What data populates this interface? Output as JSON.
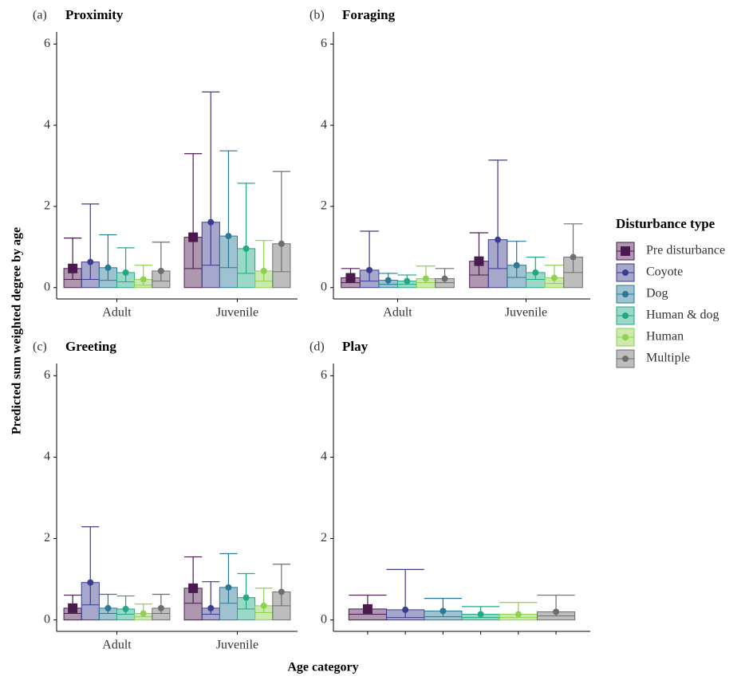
{
  "y_label": "Predicted sum weighted degree by age",
  "x_label": "Age category",
  "legend_title": "Disturbance type",
  "chart_data": [
    {
      "type": "bar",
      "panel": "(a)",
      "title": "Proximity",
      "categories": [
        "Adult",
        "Juvenile"
      ],
      "ylim": [
        -0.28,
        6.3
      ],
      "yticks": [
        0,
        2,
        4,
        6
      ],
      "series": [
        {
          "name": "Pre disturbance",
          "color": "#4a1a4f",
          "shape": "square",
          "values": [
            0.47,
            1.24
          ],
          "lower": [
            0.2,
            0.47
          ],
          "upper": [
            1.22,
            3.3
          ]
        },
        {
          "name": "Coyote",
          "color": "#3b3b8f",
          "shape": "circle",
          "values": [
            0.63,
            1.61
          ],
          "lower": [
            0.2,
            0.55
          ],
          "upper": [
            2.06,
            4.82
          ]
        },
        {
          "name": "Dog",
          "color": "#2a7896",
          "shape": "circle",
          "values": [
            0.49,
            1.27
          ],
          "lower": [
            0.18,
            0.49
          ],
          "upper": [
            1.3,
            3.37
          ]
        },
        {
          "name": "Human & dog",
          "color": "#22a884",
          "shape": "circle",
          "values": [
            0.37,
            0.96
          ],
          "lower": [
            0.14,
            0.35
          ],
          "upper": [
            0.98,
            2.57
          ]
        },
        {
          "name": "Human",
          "color": "#8fd14f",
          "shape": "circle",
          "values": [
            0.2,
            0.41
          ],
          "lower": [
            0.06,
            0.16
          ],
          "upper": [
            0.55,
            1.16
          ]
        },
        {
          "name": "Multiple",
          "color": "#6e6e6e",
          "shape": "circle",
          "values": [
            0.41,
            1.08
          ],
          "lower": [
            0.16,
            0.39
          ],
          "upper": [
            1.12,
            2.86
          ]
        }
      ]
    },
    {
      "type": "bar",
      "panel": "(b)",
      "title": "Foraging",
      "categories": [
        "Adult",
        "Juvenile"
      ],
      "ylim": [
        -0.28,
        6.3
      ],
      "yticks": [
        0,
        2,
        4,
        6
      ],
      "series": [
        {
          "name": "Pre disturbance",
          "color": "#4a1a4f",
          "shape": "square",
          "values": [
            0.24,
            0.65
          ],
          "lower": [
            0.12,
            0.31
          ],
          "upper": [
            0.47,
            1.35
          ]
        },
        {
          "name": "Coyote",
          "color": "#3b3b8f",
          "shape": "circle",
          "values": [
            0.43,
            1.18
          ],
          "lower": [
            0.16,
            0.47
          ],
          "upper": [
            1.39,
            3.14
          ]
        },
        {
          "name": "Dog",
          "color": "#2a7896",
          "shape": "circle",
          "values": [
            0.18,
            0.55
          ],
          "lower": [
            0.08,
            0.25
          ],
          "upper": [
            0.35,
            1.14
          ]
        },
        {
          "name": "Human & dog",
          "color": "#22a884",
          "shape": "circle",
          "values": [
            0.16,
            0.37
          ],
          "lower": [
            0.08,
            0.2
          ],
          "upper": [
            0.31,
            0.75
          ]
        },
        {
          "name": "Human",
          "color": "#8fd14f",
          "shape": "circle",
          "values": [
            0.22,
            0.24
          ],
          "lower": [
            0.12,
            0.1
          ],
          "upper": [
            0.53,
            0.55
          ]
        },
        {
          "name": "Multiple",
          "color": "#6e6e6e",
          "shape": "circle",
          "values": [
            0.22,
            0.75
          ],
          "lower": [
            0.12,
            0.37
          ],
          "upper": [
            0.47,
            1.57
          ]
        }
      ]
    },
    {
      "type": "bar",
      "panel": "(c)",
      "title": "Greeting",
      "categories": [
        "Adult",
        "Juvenile"
      ],
      "ylim": [
        -0.28,
        6.3
      ],
      "yticks": [
        0,
        2,
        4,
        6
      ],
      "series": [
        {
          "name": "Pre disturbance",
          "color": "#4a1a4f",
          "shape": "square",
          "values": [
            0.29,
            0.78
          ],
          "lower": [
            0.16,
            0.41
          ],
          "upper": [
            0.61,
            1.55
          ]
        },
        {
          "name": "Coyote",
          "color": "#3b3b8f",
          "shape": "circle",
          "values": [
            0.92,
            0.29
          ],
          "lower": [
            0.37,
            0.14
          ],
          "upper": [
            2.29,
            0.94
          ]
        },
        {
          "name": "Dog",
          "color": "#2a7896",
          "shape": "circle",
          "values": [
            0.29,
            0.8
          ],
          "lower": [
            0.16,
            0.41
          ],
          "upper": [
            0.63,
            1.63
          ]
        },
        {
          "name": "Human & dog",
          "color": "#22a884",
          "shape": "circle",
          "values": [
            0.27,
            0.55
          ],
          "lower": [
            0.14,
            0.27
          ],
          "upper": [
            0.59,
            1.14
          ]
        },
        {
          "name": "Human",
          "color": "#8fd14f",
          "shape": "circle",
          "values": [
            0.16,
            0.35
          ],
          "lower": [
            0.08,
            0.18
          ],
          "upper": [
            0.39,
            0.78
          ]
        },
        {
          "name": "Multiple",
          "color": "#6e6e6e",
          "shape": "circle",
          "values": [
            0.29,
            0.69
          ],
          "lower": [
            0.16,
            0.35
          ],
          "upper": [
            0.63,
            1.37
          ]
        }
      ]
    },
    {
      "type": "bar",
      "panel": "(d)",
      "title": "Play",
      "categories": [
        null
      ],
      "ylim": [
        -0.28,
        6.3
      ],
      "yticks": [
        0,
        2,
        4,
        6
      ],
      "series": [
        {
          "name": "Pre disturbance",
          "color": "#4a1a4f",
          "shape": "square",
          "values": [
            0.27
          ],
          "lower": [
            0.14
          ],
          "upper": [
            0.61
          ]
        },
        {
          "name": "Coyote",
          "color": "#3b3b8f",
          "shape": "circle",
          "values": [
            0.25
          ],
          "lower": [
            0.06
          ],
          "upper": [
            1.24
          ]
        },
        {
          "name": "Dog",
          "color": "#2a7896",
          "shape": "circle",
          "values": [
            0.22
          ],
          "lower": [
            0.08
          ],
          "upper": [
            0.53
          ]
        },
        {
          "name": "Human & dog",
          "color": "#22a884",
          "shape": "circle",
          "values": [
            0.14
          ],
          "lower": [
            0.06
          ],
          "upper": [
            0.33
          ]
        },
        {
          "name": "Human",
          "color": "#8fd14f",
          "shape": "circle",
          "values": [
            0.14
          ],
          "lower": [
            0.06
          ],
          "upper": [
            0.43
          ]
        },
        {
          "name": "Multiple",
          "color": "#6e6e6e",
          "shape": "circle",
          "values": [
            0.2
          ],
          "lower": [
            0.1
          ],
          "upper": [
            0.61
          ]
        }
      ]
    }
  ]
}
